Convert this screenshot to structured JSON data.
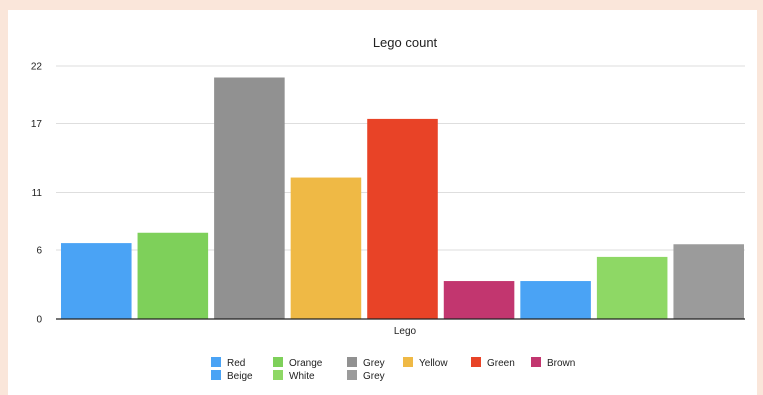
{
  "chart_data": {
    "type": "bar",
    "title": "Lego count",
    "xlabel": "Lego",
    "ylabel": "",
    "ylim": [
      0,
      22
    ],
    "yticks": [
      0,
      6,
      11,
      17,
      22
    ],
    "grid": true,
    "legend_position": "bottom",
    "series": [
      {
        "name": "Red",
        "value": 6.6,
        "color": "#4aa3f5"
      },
      {
        "name": "Orange",
        "value": 7.5,
        "color": "#7ed05a"
      },
      {
        "name": "Grey",
        "value": 21.0,
        "color": "#919191"
      },
      {
        "name": "Yellow",
        "value": 12.3,
        "color": "#efb945"
      },
      {
        "name": "Green",
        "value": 17.4,
        "color": "#e84327"
      },
      {
        "name": "Brown",
        "value": 3.3,
        "color": "#c2366f"
      },
      {
        "name": "Beige",
        "value": 3.3,
        "color": "#4aa3f5"
      },
      {
        "name": "White",
        "value": 5.4,
        "color": "#8ed865"
      },
      {
        "name": "Grey",
        "value": 6.5,
        "color": "#9b9b9b"
      }
    ]
  }
}
